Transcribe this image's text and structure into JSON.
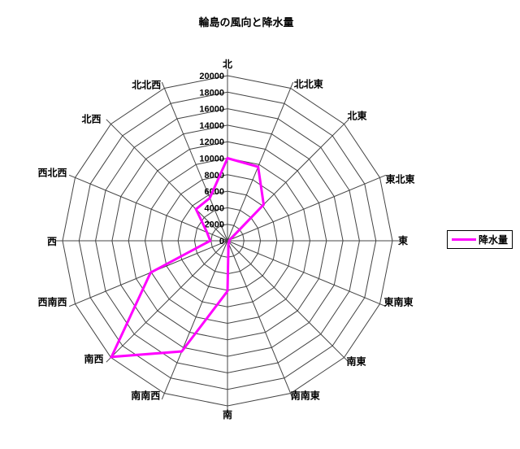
{
  "title": "輪島の風向と降水量",
  "legend": {
    "items": [
      {
        "label": "降水量",
        "color": "#FF00FF"
      }
    ]
  },
  "colors": {
    "series": "#FF00FF",
    "grid": "#444444",
    "background": "#FFFFFF",
    "text": "#000000"
  },
  "chart_data": {
    "type": "radar",
    "title": "輪島の風向と降水量",
    "categories": [
      "北",
      "北北東",
      "北東",
      "東北東",
      "東",
      "東南東",
      "南東",
      "南南東",
      "南",
      "南南西",
      "南西",
      "西南西",
      "西",
      "西北西",
      "北西",
      "北北西"
    ],
    "series": [
      {
        "name": "降水量",
        "color": "#FF00FF",
        "values": [
          10000,
          9700,
          6200,
          300,
          200,
          200,
          300,
          300,
          6100,
          14500,
          19900,
          10100,
          2100,
          2700,
          5400,
          5600
        ]
      }
    ],
    "axis": {
      "min": 0,
      "max": 20000,
      "step": 2000,
      "tick_labels": [
        "0",
        "2000",
        "4000",
        "6000",
        "8000",
        "10000",
        "12000",
        "14000",
        "16000",
        "18000",
        "20000"
      ]
    },
    "grid": true,
    "rings": 10,
    "legend_position": "right"
  }
}
